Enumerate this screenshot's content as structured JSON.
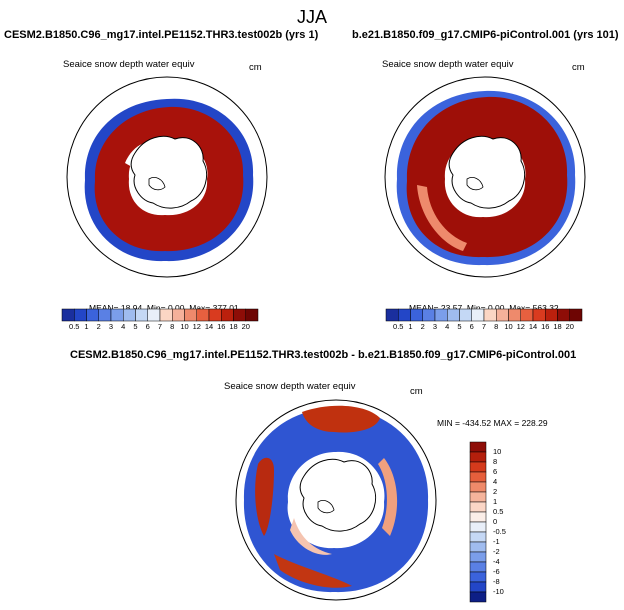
{
  "figure_title": "JJA",
  "panels": [
    {
      "id": "case",
      "run_label": "CESM2.B1850.C96_mg17.intel.PE1152.THR3.test002b (yrs 1)",
      "field_label": "Seaice snow depth water equiv",
      "units": "cm",
      "stats": {
        "mean": "18.94",
        "min": "0.00",
        "max": "377.01"
      },
      "stats_text": {
        "mean_label": "MEAN=",
        "min_label": "Min=",
        "max_label": "Max="
      }
    },
    {
      "id": "control",
      "run_label": "b.e21.B1850.f09_g17.CMIP6-piControl.001 (yrs 101)",
      "field_label": "Seaice snow depth water equiv",
      "units": "cm",
      "stats": {
        "mean": "23.57",
        "min": "0.00",
        "max": "563.32"
      },
      "stats_text": {
        "mean_label": "MEAN=",
        "min_label": "Min=",
        "max_label": "Max="
      }
    },
    {
      "id": "difference",
      "run_label": "CESM2.B1850.C96_mg17.intel.PE1152.THR3.test002b - b.e21.B1850.f09_g17.CMIP6-piControl.001",
      "field_label": "Seaice snow depth water equiv",
      "units": "cm",
      "minmax_text": "MIN = -434.52 MAX = 228.29"
    }
  ],
  "colorbar_abs": {
    "levels": [
      "0.5",
      "1",
      "2",
      "3",
      "4",
      "5",
      "6",
      "7",
      "8",
      "10",
      "12",
      "14",
      "16",
      "18",
      "20"
    ],
    "colors": [
      "#1a2f9e",
      "#2346c7",
      "#3b63dc",
      "#5a80e4",
      "#7b9eea",
      "#9fbcef",
      "#c4d8f5",
      "#e8eff9",
      "#fbd6c4",
      "#f5b19a",
      "#ee8a6c",
      "#e6603f",
      "#d93b1f",
      "#bb200d",
      "#8e0d07",
      "#6e0503"
    ]
  },
  "colorbar_diff": {
    "levels": [
      "10",
      "8",
      "6",
      "4",
      "2",
      "1",
      "0.5",
      "0",
      "-0.5",
      "-1",
      "-2",
      "-4",
      "-6",
      "-8",
      "-10"
    ],
    "colors": [
      "#8e0d07",
      "#b41f0c",
      "#d43a1c",
      "#e65f3c",
      "#ef8a6a",
      "#f5b49c",
      "#fbd6c6",
      "#fbeee8",
      "#e9eff9",
      "#c5d8f5",
      "#a0bcef",
      "#7b9eea",
      "#5a80e4",
      "#3b63dc",
      "#2346c7",
      "#0d1f86"
    ]
  }
}
